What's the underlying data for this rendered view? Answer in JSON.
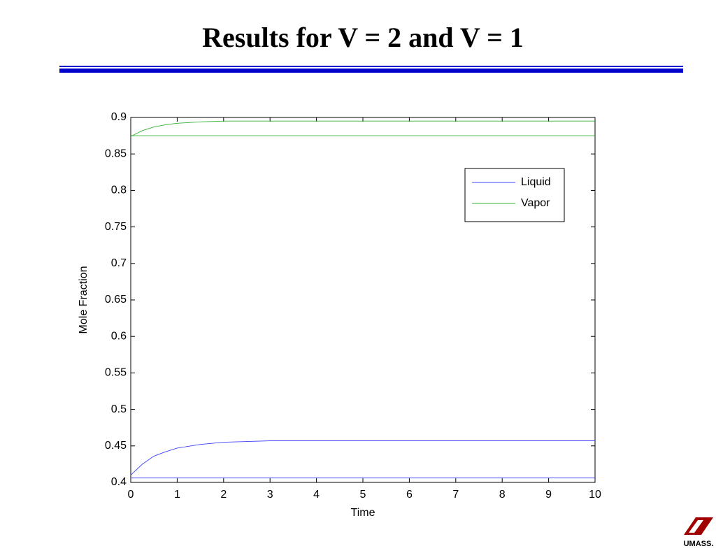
{
  "title": "Results for V = 2 and V = 1",
  "logo_text": "UMASS.",
  "chart_data": {
    "type": "line",
    "x": [
      0,
      0.25,
      0.5,
      0.75,
      1,
      1.5,
      2,
      2.5,
      3,
      4,
      5,
      6,
      7,
      8,
      9,
      10
    ],
    "series": [
      {
        "name": "Liquid",
        "color": "#4040ff",
        "values": [
          0.41,
          0.425,
          0.436,
          0.442,
          0.447,
          0.452,
          0.455,
          0.456,
          0.457,
          0.457,
          0.457,
          0.457,
          0.457,
          0.457,
          0.457,
          0.457
        ]
      },
      {
        "name": "Vapor",
        "color": "#30b030",
        "values": [
          0.874,
          0.882,
          0.887,
          0.89,
          0.892,
          0.894,
          0.895,
          0.895,
          0.895,
          0.895,
          0.895,
          0.895,
          0.895,
          0.895,
          0.895,
          0.895
        ]
      },
      {
        "color": "#4040ff",
        "values": [
          0.406,
          0.406,
          0.406,
          0.406,
          0.406,
          0.406,
          0.406,
          0.406,
          0.406,
          0.406,
          0.406,
          0.406,
          0.406,
          0.406,
          0.406,
          0.406
        ]
      },
      {
        "color": "#30b030",
        "values": [
          0.875,
          0.875,
          0.875,
          0.875,
          0.875,
          0.875,
          0.875,
          0.875,
          0.875,
          0.875,
          0.875,
          0.875,
          0.875,
          0.875,
          0.875,
          0.875
        ]
      }
    ],
    "xlabel": "Time",
    "ylabel": "Mole Fraction",
    "xlim": [
      0,
      10
    ],
    "xticks": [
      0,
      1,
      2,
      3,
      4,
      5,
      6,
      7,
      8,
      9,
      10
    ],
    "ylim": [
      0.4,
      0.9
    ],
    "yticks": [
      0.4,
      0.45,
      0.5,
      0.55,
      0.6,
      0.65,
      0.7,
      0.75,
      0.8,
      0.85,
      0.9
    ],
    "legend": "upper right",
    "grid": false
  }
}
